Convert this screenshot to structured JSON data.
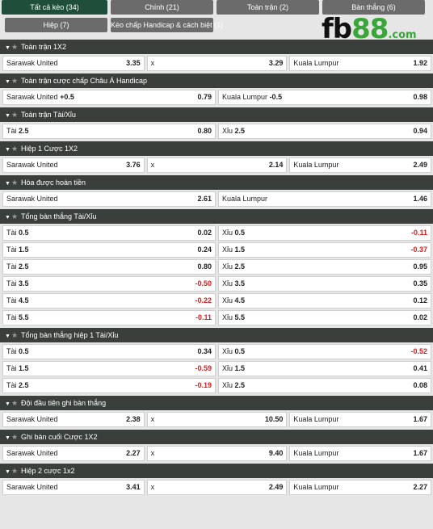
{
  "tabs": [
    {
      "label": "Tất cả kèo (34)",
      "active": true
    },
    {
      "label": "Chính (21)"
    },
    {
      "label": "Toàn trận (2)"
    },
    {
      "label": "Bàn thắng (6)"
    },
    {
      "label": "Hiệp (7)"
    },
    {
      "label": "Kèo chấp Handicap & cách biệt (1)"
    }
  ],
  "logo": {
    "fb": "fb",
    "num": "88",
    "com": ".com"
  },
  "sections": [
    {
      "title": "Toàn trận 1X2",
      "cols": 3,
      "rows": [
        [
          {
            "label": "Sarawak United",
            "odd": "3.35"
          },
          {
            "label": "x",
            "odd": "3.29"
          },
          {
            "label": "Kuala Lumpur",
            "odd": "1.92"
          }
        ]
      ]
    },
    {
      "title": "Toàn trận cược chấp Châu Á Handicap",
      "cols": 2,
      "rows": [
        [
          {
            "label": "Sarawak United",
            "hcp": "+0.5",
            "odd": "0.79"
          },
          {
            "label": "Kuala Lumpur",
            "hcp": "-0.5",
            "odd": "0.98"
          }
        ]
      ]
    },
    {
      "title": "Toàn trận Tài/Xỉu",
      "cols": 2,
      "rows": [
        [
          {
            "label": "Tài",
            "hcp": "2.5",
            "odd": "0.80"
          },
          {
            "label": "Xỉu",
            "hcp": "2.5",
            "odd": "0.94"
          }
        ]
      ]
    },
    {
      "title": "Hiệp 1 Cược 1X2",
      "cols": 3,
      "rows": [
        [
          {
            "label": "Sarawak United",
            "odd": "3.76"
          },
          {
            "label": "x",
            "odd": "2.14"
          },
          {
            "label": "Kuala Lumpur",
            "odd": "2.49"
          }
        ]
      ]
    },
    {
      "title": "Hòa được hoàn tiền",
      "cols": 2,
      "rows": [
        [
          {
            "label": "Sarawak United",
            "odd": "2.61"
          },
          {
            "label": "Kuala Lumpur",
            "odd": "1.46"
          }
        ]
      ]
    },
    {
      "title": "Tổng bàn thắng Tài/Xỉu",
      "cols": 2,
      "rows": [
        [
          {
            "label": "Tài",
            "hcp": "0.5",
            "odd": "0.02"
          },
          {
            "label": "Xỉu",
            "hcp": "0.5",
            "odd": "-0.11"
          }
        ],
        [
          {
            "label": "Tài",
            "hcp": "1.5",
            "odd": "0.24"
          },
          {
            "label": "Xỉu",
            "hcp": "1.5",
            "odd": "-0.37"
          }
        ],
        [
          {
            "label": "Tài",
            "hcp": "2.5",
            "odd": "0.80"
          },
          {
            "label": "Xỉu",
            "hcp": "2.5",
            "odd": "0.95"
          }
        ],
        [
          {
            "label": "Tài",
            "hcp": "3.5",
            "odd": "-0.50"
          },
          {
            "label": "Xỉu",
            "hcp": "3.5",
            "odd": "0.35"
          }
        ],
        [
          {
            "label": "Tài",
            "hcp": "4.5",
            "odd": "-0.22"
          },
          {
            "label": "Xỉu",
            "hcp": "4.5",
            "odd": "0.12"
          }
        ],
        [
          {
            "label": "Tài",
            "hcp": "5.5",
            "odd": "-0.11"
          },
          {
            "label": "Xỉu",
            "hcp": "5.5",
            "odd": "0.02"
          }
        ]
      ]
    },
    {
      "title": "Tổng bàn thắng hiệp 1 Tài/Xỉu",
      "cols": 2,
      "rows": [
        [
          {
            "label": "Tài",
            "hcp": "0.5",
            "odd": "0.34"
          },
          {
            "label": "Xỉu",
            "hcp": "0.5",
            "odd": "-0.52"
          }
        ],
        [
          {
            "label": "Tài",
            "hcp": "1.5",
            "odd": "-0.59"
          },
          {
            "label": "Xỉu",
            "hcp": "1.5",
            "odd": "0.41"
          }
        ],
        [
          {
            "label": "Tài",
            "hcp": "2.5",
            "odd": "-0.19"
          },
          {
            "label": "Xỉu",
            "hcp": "2.5",
            "odd": "0.08"
          }
        ]
      ]
    },
    {
      "title": "Đội đầu tiên ghi bàn thắng",
      "cols": 3,
      "rows": [
        [
          {
            "label": "Sarawak United",
            "odd": "2.38"
          },
          {
            "label": "x",
            "odd": "10.50"
          },
          {
            "label": "Kuala Lumpur",
            "odd": "1.67"
          }
        ]
      ]
    },
    {
      "title": "Ghi bàn cuối Cược 1X2",
      "cols": 3,
      "rows": [
        [
          {
            "label": "Sarawak United",
            "odd": "2.27"
          },
          {
            "label": "x",
            "odd": "9.40"
          },
          {
            "label": "Kuala Lumpur",
            "odd": "1.67"
          }
        ]
      ]
    },
    {
      "title": "Hiệp 2 cược 1x2",
      "cols": 3,
      "rows": [
        [
          {
            "label": "Sarawak United",
            "odd": "3.41"
          },
          {
            "label": "x",
            "odd": "2.49"
          },
          {
            "label": "Kuala Lumpur",
            "odd": "2.27"
          }
        ]
      ]
    }
  ]
}
